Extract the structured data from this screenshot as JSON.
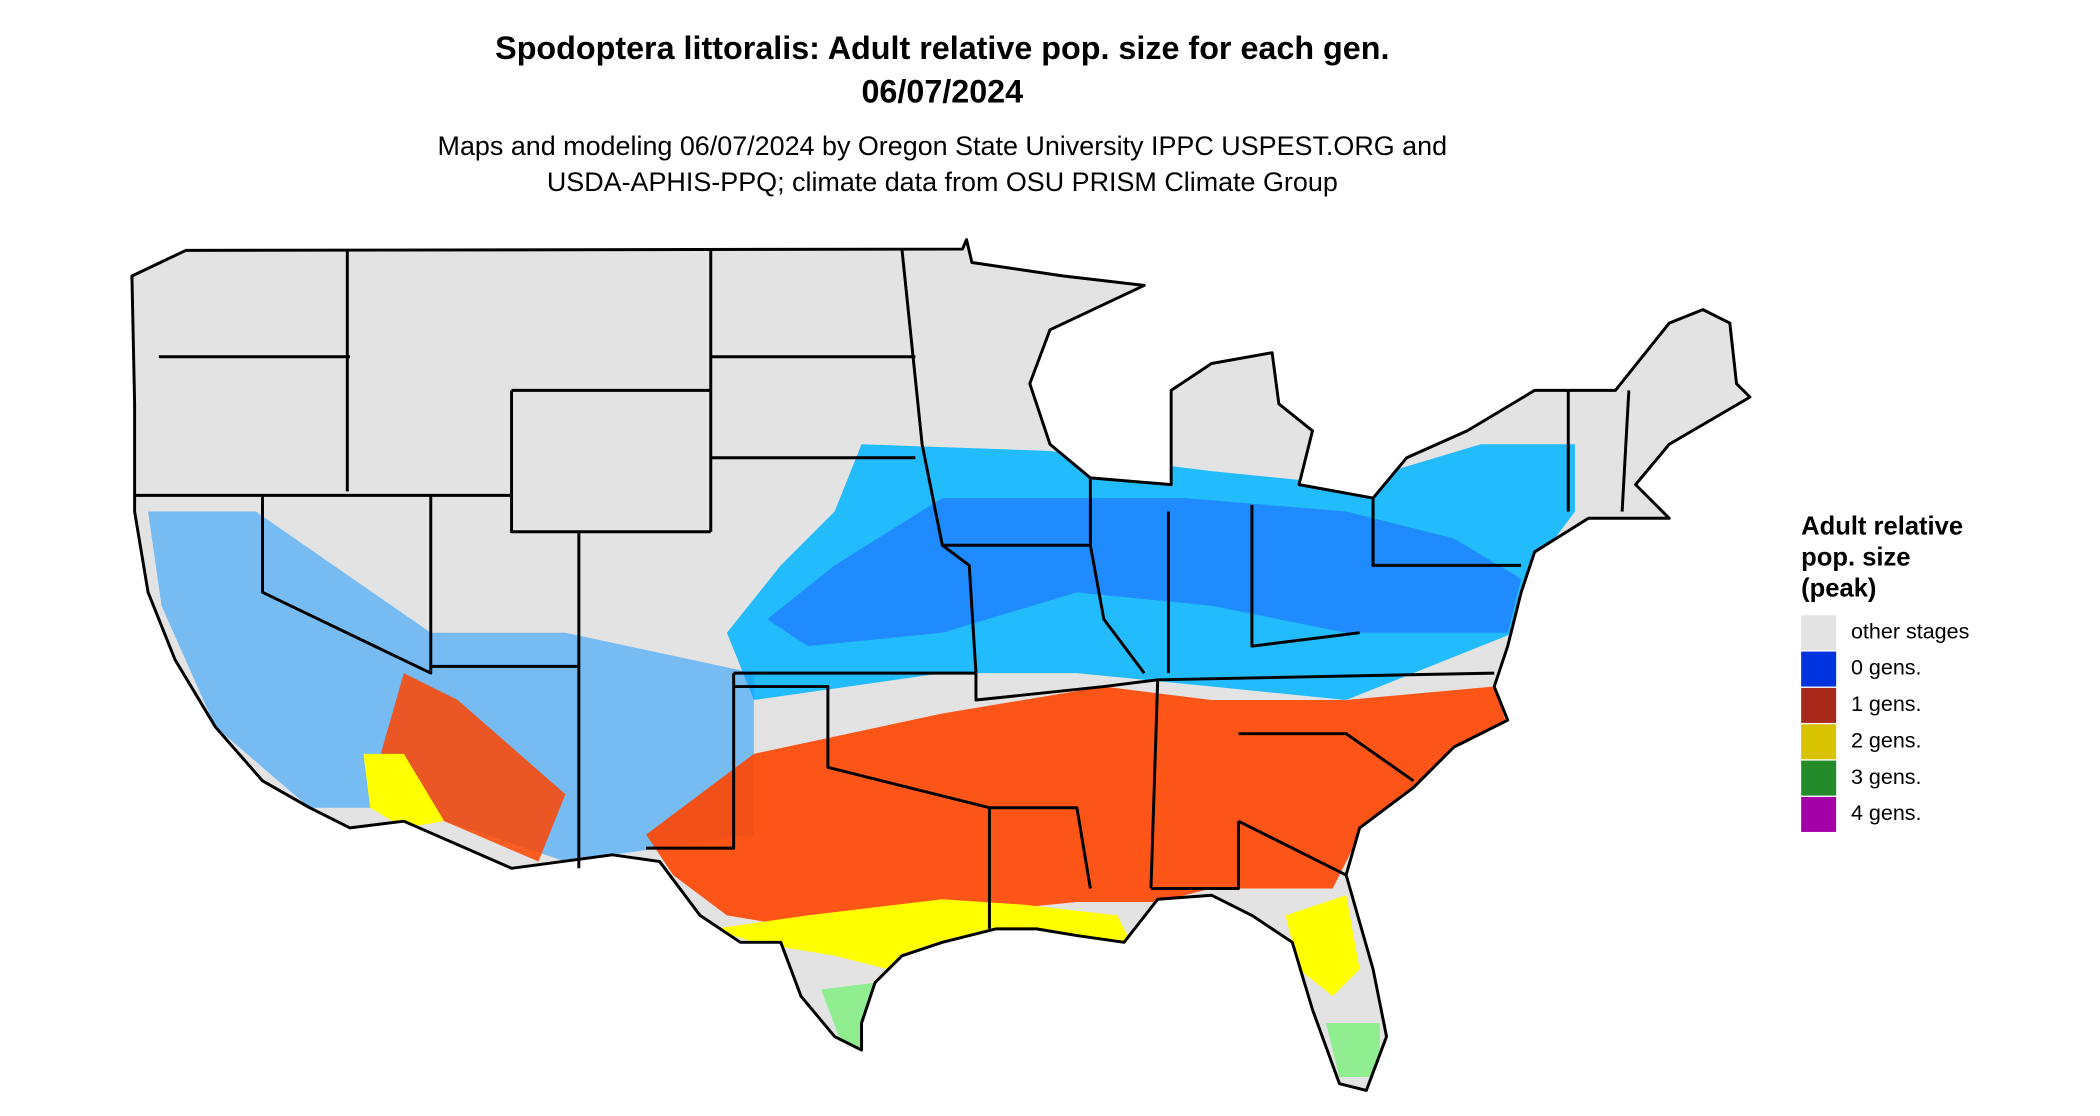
{
  "title": [
    "Spodoptera littoralis: Adult relative pop. size for each gen.",
    "06/07/2024"
  ],
  "subtitle": [
    "Maps and modeling 06/07/2024 by Oregon State University IPPC USPEST.ORG and",
    "USDA-APHIS-PPQ; climate data from OSU PRISM Climate Group"
  ],
  "legend": {
    "title": [
      "Adult relative",
      "pop. size",
      "(peak)"
    ],
    "items": [
      {
        "label": "other stages",
        "color": "#e3e3e3"
      },
      {
        "label": "0 gens.",
        "color": "#0033dd"
      },
      {
        "label": "1 gens.",
        "color": "#a8281a"
      },
      {
        "label": "2 gens.",
        "color": "#d9c300"
      },
      {
        "label": "3 gens.",
        "color": "#238b2a"
      },
      {
        "label": "4 gens.",
        "color": "#a300a8"
      }
    ]
  }
}
